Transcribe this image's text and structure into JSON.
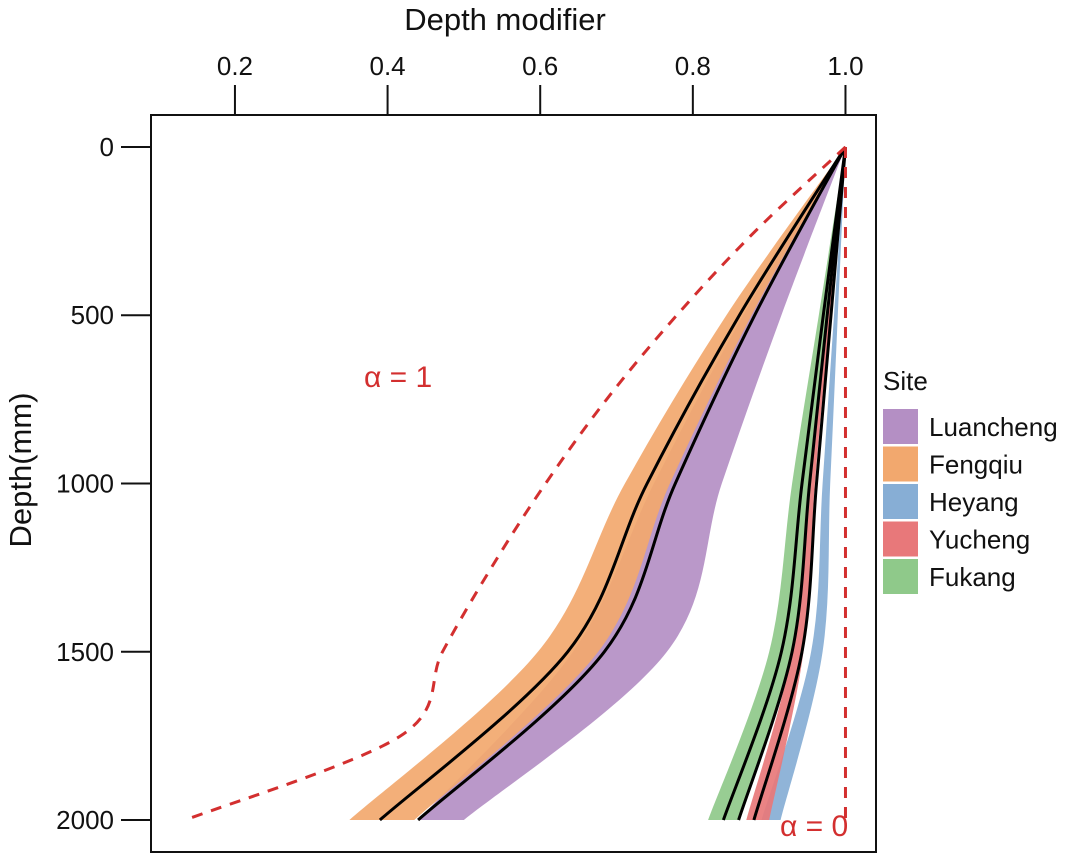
{
  "chart_data": {
    "type": "line",
    "xlabel": "Depth modifier",
    "ylabel": "Depth(mm)",
    "x_axis_position": "top",
    "y_axis_inverted": true,
    "xlim": [
      0.09,
      1.04
    ],
    "ylim": [
      -95,
      2095
    ],
    "x_ticks": [
      0.2,
      0.4,
      0.6,
      0.8,
      1.0
    ],
    "x_tick_labels": [
      "0.2",
      "0.4",
      "0.6",
      "0.8",
      "1.0"
    ],
    "y_ticks": [
      0,
      500,
      1000,
      1500,
      2000
    ],
    "y_tick_labels": [
      "0",
      "500",
      "1000",
      "1500",
      "2000"
    ],
    "grid": false,
    "legend": {
      "title": "Site",
      "placement": "right",
      "entries": [
        {
          "label": "Luancheng",
          "color": "#b48fc4"
        },
        {
          "label": "Fengqiu",
          "color": "#f2a86e"
        },
        {
          "label": "Heyang",
          "color": "#87aed5"
        },
        {
          "label": "Yucheng",
          "color": "#e8787a"
        },
        {
          "label": "Fukang",
          "color": "#8fc98a"
        }
      ]
    },
    "bands": [
      {
        "site": "Luancheng",
        "color": "#b48fc4",
        "depth": [
          0,
          500,
          1000,
          1500,
          2000
        ],
        "lower": [
          1.0,
          0.866,
          0.749,
          0.643,
          0.44
        ],
        "upper": [
          1.0,
          0.916,
          0.838,
          0.766,
          0.5
        ]
      },
      {
        "site": "Fengqiu",
        "color": "#f2a86e",
        "depth": [
          0,
          500,
          1000,
          1500,
          2000
        ],
        "lower": [
          1.0,
          0.844,
          0.711,
          0.597,
          0.35
        ],
        "upper": [
          1.0,
          0.877,
          0.77,
          0.676,
          0.435
        ]
      },
      {
        "site": "Heyang",
        "color": "#87aed5",
        "depth": [
          0,
          500,
          1000,
          1500,
          2000
        ],
        "lower": [
          1.0,
          0.985,
          0.97,
          0.955,
          0.89
        ],
        "upper": [
          1.0,
          0.99,
          0.98,
          0.97,
          0.915
        ]
      },
      {
        "site": "Yucheng",
        "color": "#e8787a",
        "depth": [
          0,
          500,
          1000,
          1500,
          2000
        ],
        "lower": [
          1.0,
          0.975,
          0.95,
          0.93,
          0.87
        ],
        "upper": [
          1.0,
          0.98,
          0.96,
          0.945,
          0.9
        ]
      },
      {
        "site": "Fukang",
        "color": "#8fc98a",
        "depth": [
          0,
          500,
          1000,
          1500,
          2000
        ],
        "lower": [
          1.0,
          0.965,
          0.93,
          0.9,
          0.82
        ],
        "upper": [
          1.0,
          0.975,
          0.955,
          0.93,
          0.86
        ]
      }
    ],
    "fit_lines": [
      {
        "color": "#000000",
        "depth": [
          0,
          500,
          1000,
          1500,
          2000
        ],
        "value": [
          1.0,
          0.861,
          0.74,
          0.636,
          0.39
        ]
      },
      {
        "color": "#000000",
        "depth": [
          0,
          500,
          1000,
          1500,
          2000
        ],
        "value": [
          1.0,
          0.881,
          0.777,
          0.684,
          0.44
        ]
      },
      {
        "color": "#000000",
        "depth": [
          0,
          500,
          1000,
          1500,
          2000
        ],
        "value": [
          1.0,
          0.971,
          0.943,
          0.916,
          0.84
        ]
      },
      {
        "color": "#000000",
        "depth": [
          0,
          500,
          1000,
          1500,
          2000
        ],
        "value": [
          1.0,
          0.976,
          0.953,
          0.93,
          0.86
        ]
      },
      {
        "color": "#000000",
        "depth": [
          0,
          500,
          1000,
          1500,
          2000
        ],
        "value": [
          1.0,
          0.981,
          0.962,
          0.943,
          0.88
        ]
      }
    ],
    "reference_curves": [
      {
        "label": "α = 1",
        "color": "#d32f2f",
        "style": "dashed",
        "depth": [
          0,
          250,
          500,
          750,
          1000,
          1250,
          1500,
          1750,
          2000
        ],
        "value": [
          1.0,
          0.882,
          0.779,
          0.687,
          0.607,
          0.536,
          0.472,
          0.417,
          0.135
        ]
      },
      {
        "label": "α = 0",
        "color": "#d32f2f",
        "style": "dashed",
        "depth": [
          0,
          2000
        ],
        "value": [
          1.0,
          1.0
        ]
      }
    ]
  }
}
